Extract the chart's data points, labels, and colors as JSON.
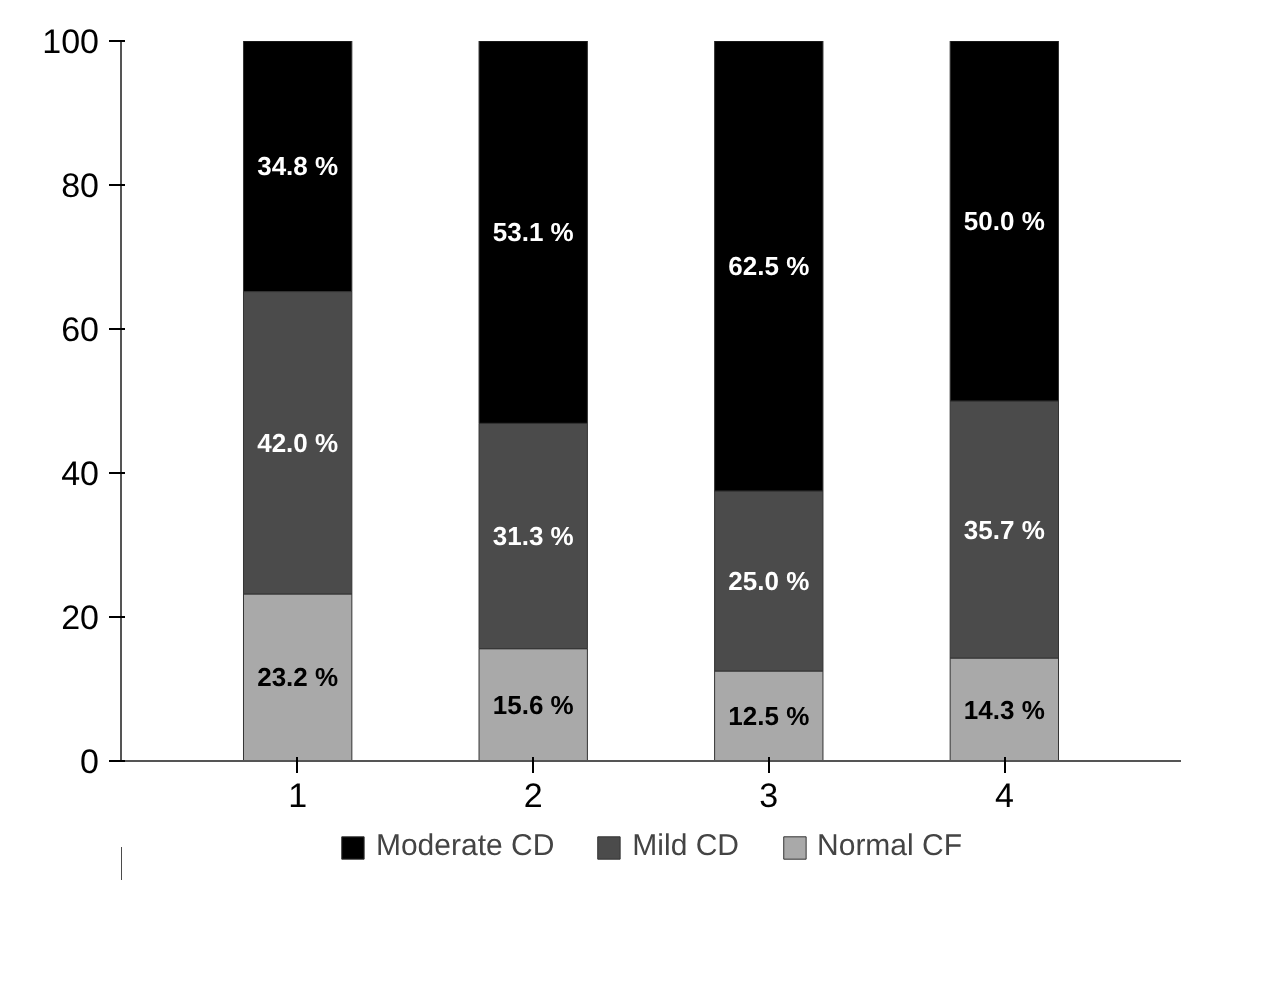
{
  "chart_data": {
    "type": "bar",
    "stacked": true,
    "categories": [
      "1",
      "2",
      "3",
      "4"
    ],
    "series": [
      {
        "name": "Normal CF",
        "color": "#a9a9a9",
        "values": [
          23.2,
          15.6,
          12.5,
          14.3
        ],
        "value_labels": [
          "23.2 %",
          "15.6 %",
          "12.5 %",
          "14.3 %"
        ]
      },
      {
        "name": "Mild CD",
        "color": "#4b4b4b",
        "values": [
          42.0,
          31.3,
          25.0,
          35.7
        ],
        "value_labels": [
          "42.0 %",
          "31.3 %",
          "25.0 %",
          "35.7 %"
        ]
      },
      {
        "name": "Moderate CD",
        "color": "#000000",
        "values": [
          34.8,
          53.1,
          62.5,
          50.0
        ],
        "value_labels": [
          "34.8 %",
          "53.1 %",
          "62.5 %",
          "50.0 %"
        ]
      }
    ],
    "ylim": [
      0,
      100
    ],
    "yticks": [
      0,
      20,
      40,
      60,
      80,
      100
    ],
    "grid": false,
    "legend": "bottom"
  }
}
